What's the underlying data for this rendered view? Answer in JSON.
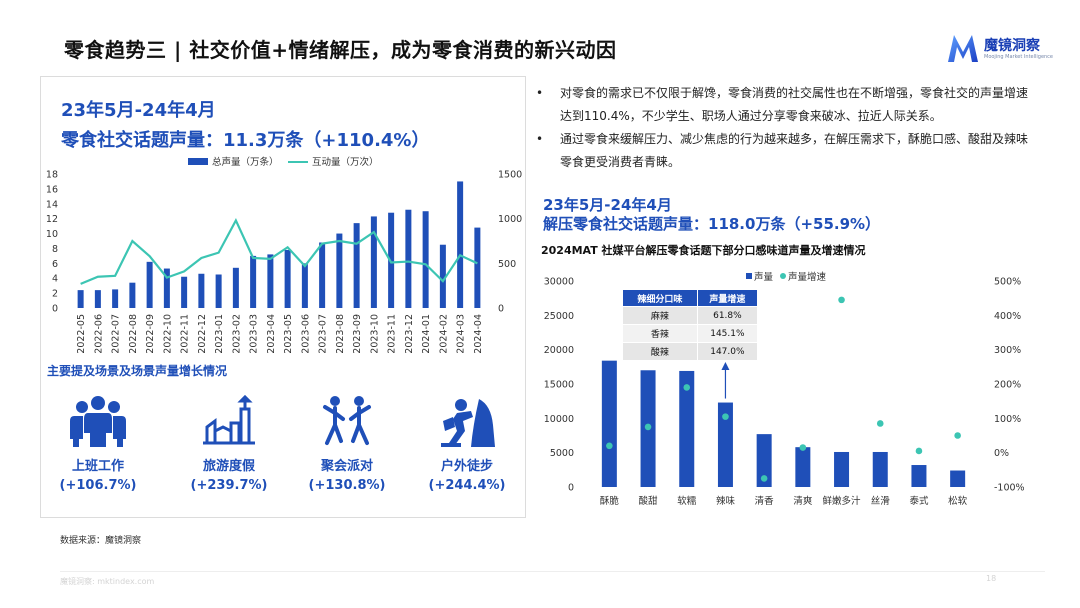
{
  "page": {
    "title": "零食趋势三 | 社交价值+情绪解压，成为零食消费的新兴动因",
    "logo_name": "魔镜洞察",
    "logo_sub": "Moojing Market Intelligence",
    "source": "数据来源：魔镜洞察",
    "footer_url": "魔镜洞察: mktindex.com",
    "page_number": "18",
    "colors": {
      "accent": "#1f4fb8",
      "bar": "#1f4fb8",
      "line": "#3cc5b3",
      "dot": "#3cc5b3"
    }
  },
  "left": {
    "date_range": "23年5月-24年4月",
    "metric": "零食社交话题声量：11.3万条（+110.4%）",
    "section_title": "主要提及场景及场景声量增长情况",
    "scenes": [
      {
        "icon": "office-workers-icon",
        "name": "上班工作",
        "growth": "(+106.7%)"
      },
      {
        "icon": "travel-vacation-icon",
        "name": "旅游度假",
        "growth": "(+239.7%)"
      },
      {
        "icon": "party-dancing-icon",
        "name": "聚会派对",
        "growth": "(+130.8%)"
      },
      {
        "icon": "hiking-climber-icon",
        "name": "户外徒步",
        "growth": "(+244.4%)"
      }
    ]
  },
  "right": {
    "bullets": [
      "对零食的需求已不仅限于解馋，零食消费的社交属性也在不断增强，零食社交的声量增速达到110.4%，不少学生、职场人通过分享零食来破冰、拉近人际关系。",
      "通过零食来缓解压力、减少焦虑的行为越来越多，在解压需求下，酥脆口感、酸甜及辣味零食更受消费者青睐。"
    ],
    "date_range": "23年5月-24年4月",
    "metric": "解压零食社交话题声量：118.0万条（+55.9%）",
    "chart_title": "2024MAT 社媒平台解压零食话题下部分口感味道声量及增速情况",
    "table": {
      "headers": [
        "辣细分口味",
        "声量增速"
      ],
      "rows": [
        [
          "麻辣",
          "61.8%"
        ],
        [
          "香辣",
          "145.1%"
        ],
        [
          "酸辣",
          "147.0%"
        ]
      ]
    }
  },
  "chart_data": [
    {
      "type": "bar",
      "series": [
        {
          "name": "总声量（万条）",
          "type": "bar",
          "axis": "left",
          "values": [
            2.4,
            2.4,
            2.5,
            3.4,
            6.2,
            5.3,
            4.2,
            4.6,
            4.5,
            5.4,
            7.0,
            7.2,
            7.8,
            6.0,
            8.8,
            10.0,
            11.4,
            12.3,
            12.8,
            13.2,
            13.0,
            8.5,
            17.0,
            10.8
          ]
        },
        {
          "name": "互动量（万次）",
          "type": "line",
          "axis": "right",
          "values": [
            270,
            350,
            360,
            750,
            580,
            340,
            410,
            560,
            620,
            980,
            560,
            550,
            680,
            470,
            720,
            750,
            720,
            850,
            510,
            520,
            490,
            300,
            590,
            500
          ]
        }
      ],
      "categories": [
        "2022-05",
        "2022-06",
        "2022-07",
        "2022-08",
        "2022-09",
        "2022-10",
        "2022-11",
        "2022-12",
        "2023-01",
        "2023-02",
        "2023-03",
        "2023-04",
        "2023-05",
        "2023-06",
        "2023-07",
        "2023-08",
        "2023-09",
        "2023-10",
        "2023-11",
        "2023-12",
        "2024-01",
        "2024-02",
        "2024-03",
        "2024-04"
      ],
      "ylim": [
        0,
        18
      ],
      "yticks": [
        "0",
        "2",
        "4",
        "6",
        "8",
        "10",
        "12",
        "14",
        "16",
        "18"
      ],
      "y2lim": [
        0,
        1500
      ],
      "y2ticks": [
        "0",
        "500",
        "1000",
        "1500"
      ],
      "legend": "top-center"
    },
    {
      "type": "bar",
      "series": [
        {
          "name": "声量",
          "type": "bar",
          "axis": "left",
          "values": [
            18400,
            17000,
            16900,
            12300,
            7700,
            5800,
            5100,
            5100,
            3200,
            2400
          ]
        },
        {
          "name": "声量增速",
          "type": "scatter",
          "axis": "right",
          "values": [
            0.2,
            0.75,
            1.9,
            1.05,
            -0.75,
            0.15,
            4.45,
            0.85,
            0.05,
            0.5
          ]
        }
      ],
      "categories": [
        "酥脆",
        "酸甜",
        "软糯",
        "辣味",
        "清香",
        "清爽",
        "鲜嫩多汁",
        "丝滑",
        "泰式",
        "松软"
      ],
      "ylim": [
        0,
        30000
      ],
      "yticks": [
        "0",
        "5000",
        "10000",
        "15000",
        "20000",
        "25000",
        "30000"
      ],
      "y2lim": [
        -1,
        5
      ],
      "y2ticks": [
        "-100%",
        "0%",
        "100%",
        "200%",
        "300%",
        "400%",
        "500%"
      ],
      "legend": "top-center",
      "annotation": "arrow-to-辣味"
    }
  ]
}
